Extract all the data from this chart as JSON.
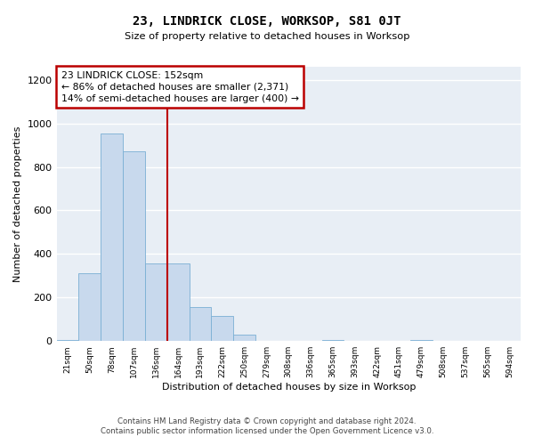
{
  "title": "23, LINDRICK CLOSE, WORKSOP, S81 0JT",
  "subtitle": "Size of property relative to detached houses in Worksop",
  "xlabel": "Distribution of detached houses by size in Worksop",
  "ylabel": "Number of detached properties",
  "bar_color": "#c8d9ed",
  "bar_edge_color": "#7aafd4",
  "background_color": "#e8eef5",
  "grid_color": "#ffffff",
  "annotation_box_color": "#bb0000",
  "vline_color": "#bb0000",
  "categories": [
    "21sqm",
    "50sqm",
    "78sqm",
    "107sqm",
    "136sqm",
    "164sqm",
    "193sqm",
    "222sqm",
    "250sqm",
    "279sqm",
    "308sqm",
    "336sqm",
    "365sqm",
    "393sqm",
    "422sqm",
    "451sqm",
    "479sqm",
    "508sqm",
    "537sqm",
    "565sqm",
    "594sqm"
  ],
  "values": [
    5,
    310,
    955,
    870,
    355,
    355,
    155,
    115,
    30,
    0,
    0,
    0,
    5,
    0,
    0,
    0,
    5,
    0,
    0,
    0,
    0
  ],
  "ylim": [
    0,
    1260
  ],
  "yticks": [
    0,
    200,
    400,
    600,
    800,
    1000,
    1200
  ],
  "vline_position": 4.5,
  "annotation_text": "23 LINDRICK CLOSE: 152sqm\n← 86% of detached houses are smaller (2,371)\n14% of semi-detached houses are larger (400) →",
  "footnote1": "Contains HM Land Registry data © Crown copyright and database right 2024.",
  "footnote2": "Contains public sector information licensed under the Open Government Licence v3.0."
}
